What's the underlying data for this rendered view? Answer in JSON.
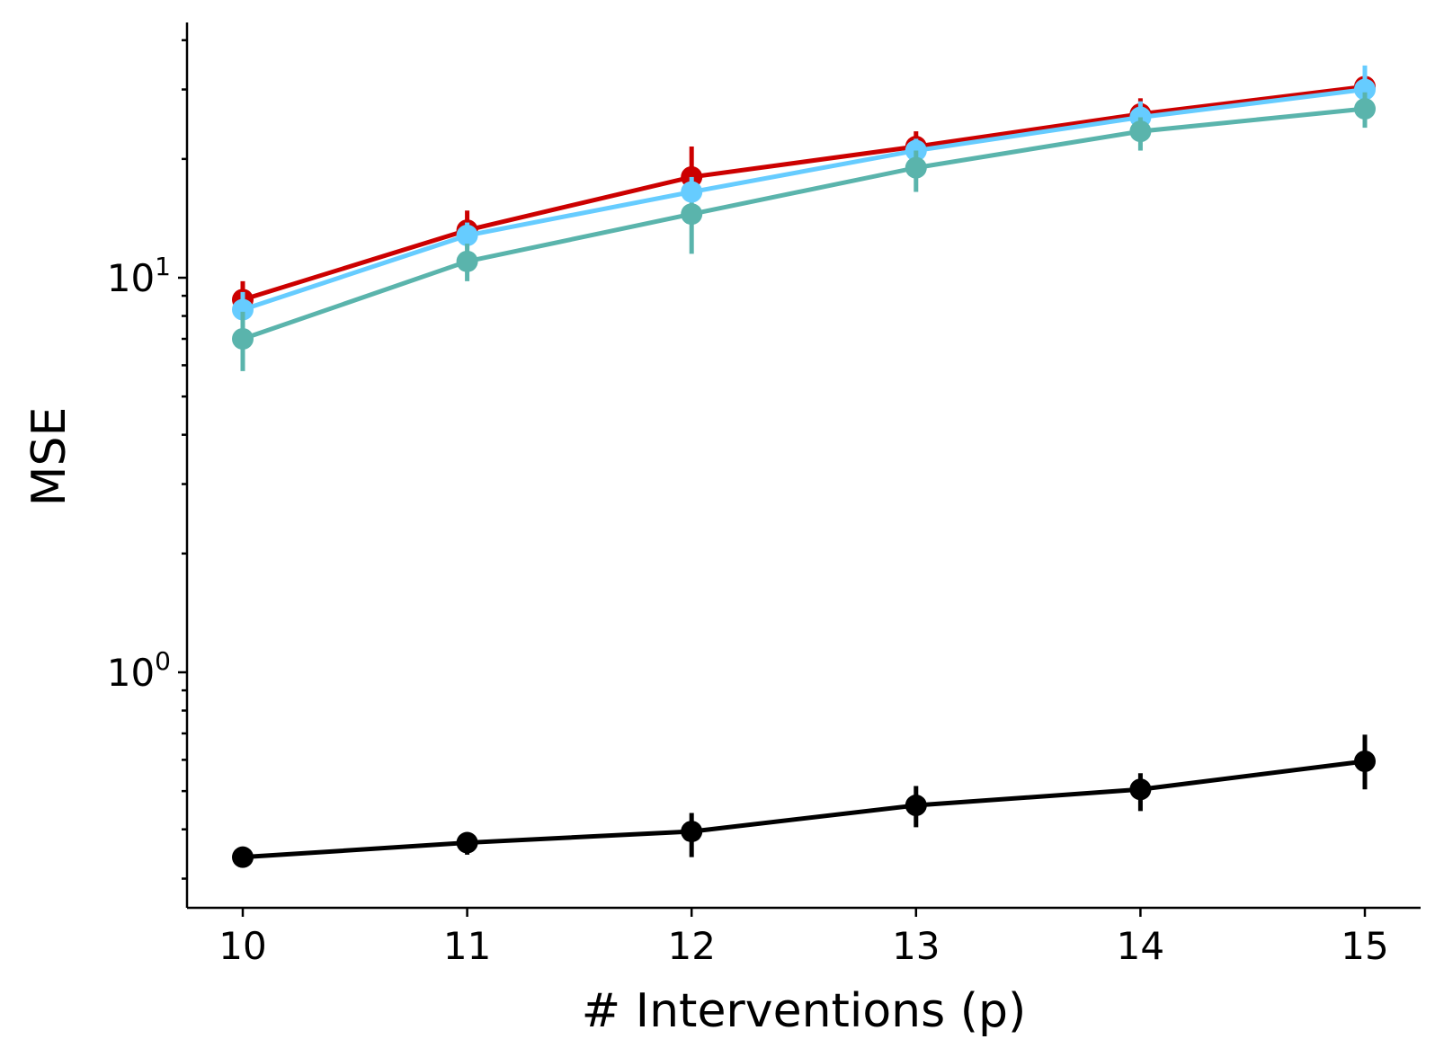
{
  "chart_data": {
    "type": "line",
    "title": "",
    "xlabel": "# Interventions (p)",
    "ylabel": "MSE",
    "yscale": "log",
    "x": [
      10,
      11,
      12,
      13,
      14,
      15
    ],
    "xlim": [
      9.75,
      15.25
    ],
    "ylim": [
      0.27,
      52
    ],
    "x_ticks": [
      "10",
      "11",
      "12",
      "13",
      "14",
      "15"
    ],
    "y_major_ticks": [
      {
        "value": 1,
        "base": "10",
        "exp": "0"
      },
      {
        "value": 10,
        "base": "10",
        "exp": "1"
      }
    ],
    "y_minor_ticks": [
      0.3,
      0.4,
      0.5,
      0.6,
      0.7,
      0.8,
      0.9,
      2,
      3,
      4,
      5,
      6,
      7,
      8,
      9,
      20,
      30,
      40
    ],
    "grid": false,
    "legend": "none",
    "series": [
      {
        "name": "red",
        "color": "#cc0000",
        "values": [
          8.8,
          13.2,
          18.0,
          21.5,
          26.0,
          30.5
        ],
        "err_low": [
          7.9,
          12.4,
          16.5,
          20.5,
          24.5,
          28.5
        ],
        "err_high": [
          9.8,
          14.8,
          21.5,
          23.5,
          28.5,
          34.0
        ]
      },
      {
        "name": "light-blue",
        "color": "#66ccff",
        "values": [
          8.3,
          12.8,
          16.5,
          21.0,
          25.5,
          30.0
        ],
        "err_low": [
          7.6,
          11.8,
          15.5,
          20.0,
          23.5,
          27.5
        ],
        "err_high": [
          9.2,
          13.8,
          18.0,
          22.5,
          28.0,
          34.5
        ]
      },
      {
        "name": "teal",
        "color": "#5ab4ac",
        "values": [
          7.0,
          11.0,
          14.5,
          19.0,
          23.5,
          26.8
        ],
        "err_low": [
          5.8,
          9.8,
          11.5,
          16.5,
          21.0,
          24.0
        ],
        "err_high": [
          8.2,
          12.2,
          15.5,
          21.0,
          25.5,
          29.5
        ]
      },
      {
        "name": "black",
        "color": "#000000",
        "values": [
          0.34,
          0.37,
          0.395,
          0.46,
          0.505,
          0.595
        ],
        "err_low": [
          0.32,
          0.345,
          0.34,
          0.405,
          0.445,
          0.505
        ],
        "err_high": [
          0.355,
          0.385,
          0.44,
          0.515,
          0.555,
          0.695
        ]
      }
    ]
  }
}
